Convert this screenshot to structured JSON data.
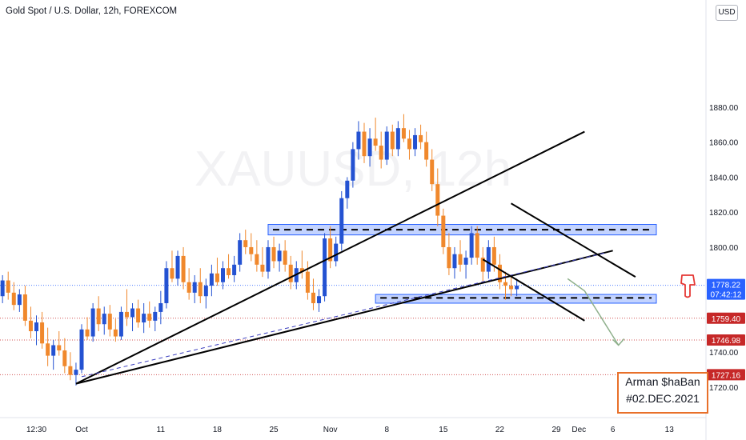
{
  "header": {
    "title": "Gold Spot / U.S. Dollar, 12h, FOREXCOM",
    "currency": "USD",
    "watermark": "XAUUSD, 12h"
  },
  "author_box": {
    "name": "Arman $haBan",
    "date": "#02.DEC.2021",
    "border_color": "#e8702a"
  },
  "price_tags": [
    {
      "value": "1778.22",
      "sub": "07:42:12",
      "color": "#2962ff"
    },
    {
      "value": "1759.40",
      "color": "#c62828"
    },
    {
      "value": "1746.98",
      "color": "#c62828"
    },
    {
      "value": "1727.16",
      "color": "#c62828"
    }
  ],
  "icons": {
    "pointer": "hand-pointing-down-icon"
  },
  "colors": {
    "bull": "#2452d2",
    "bear": "#f0882c",
    "zone": "#2962ff",
    "level": "#e53935"
  },
  "chart_data": {
    "type": "candlestick",
    "title": "Gold Spot / U.S. Dollar, 12h, FOREXCOM",
    "y_ticks": [
      "1720.00",
      "1740.00",
      "1760.00",
      "1780.00",
      "1800.00",
      "1820.00",
      "1840.00",
      "1860.00",
      "1880.00"
    ],
    "ylim": [
      1707,
      1890
    ],
    "x_ticks": [
      {
        "label": "12:30",
        "i": -8
      },
      {
        "label": "Oct",
        "i": 0
      },
      {
        "label": "11",
        "i": 14
      },
      {
        "label": "18",
        "i": 24
      },
      {
        "label": "25",
        "i": 34
      },
      {
        "label": "Nov",
        "i": 44
      },
      {
        "label": "8",
        "i": 54
      },
      {
        "label": "15",
        "i": 64
      },
      {
        "label": "22",
        "i": 74
      },
      {
        "label": "29",
        "i": 84
      },
      {
        "label": "Dec",
        "i": 88
      },
      {
        "label": "6",
        "i": 94
      },
      {
        "label": "13",
        "i": 104
      }
    ],
    "x_range": [
      -14,
      111
    ],
    "candles": [
      [
        -14,
        1772,
        1784,
        1768,
        1781
      ],
      [
        -13,
        1781,
        1786,
        1770,
        1774
      ],
      [
        -12,
        1774,
        1780,
        1764,
        1767
      ],
      [
        -11,
        1767,
        1776,
        1763,
        1773
      ],
      [
        -10,
        1773,
        1778,
        1755,
        1758
      ],
      [
        -9,
        1758,
        1766,
        1748,
        1752
      ],
      [
        -8,
        1752,
        1761,
        1744,
        1757
      ],
      [
        -7,
        1757,
        1763,
        1742,
        1745
      ],
      [
        -6,
        1745,
        1754,
        1732,
        1738
      ],
      [
        -5,
        1738,
        1747,
        1730,
        1744
      ],
      [
        -4,
        1744,
        1752,
        1738,
        1741
      ],
      [
        -3,
        1741,
        1748,
        1728,
        1732
      ],
      [
        -2,
        1732,
        1740,
        1724,
        1727
      ],
      [
        -1,
        1727,
        1734,
        1721,
        1730
      ],
      [
        0,
        1730,
        1756,
        1728,
        1753
      ],
      [
        1,
        1753,
        1760,
        1747,
        1749
      ],
      [
        2,
        1749,
        1768,
        1746,
        1765
      ],
      [
        3,
        1765,
        1772,
        1752,
        1756
      ],
      [
        4,
        1756,
        1766,
        1750,
        1762
      ],
      [
        5,
        1762,
        1767,
        1749,
        1753
      ],
      [
        6,
        1753,
        1759,
        1746,
        1749
      ],
      [
        7,
        1749,
        1766,
        1747,
        1763
      ],
      [
        8,
        1763,
        1776,
        1755,
        1760
      ],
      [
        9,
        1760,
        1768,
        1752,
        1765
      ],
      [
        10,
        1765,
        1770,
        1754,
        1757
      ],
      [
        11,
        1757,
        1768,
        1751,
        1762
      ],
      [
        12,
        1762,
        1769,
        1754,
        1758
      ],
      [
        13,
        1758,
        1766,
        1752,
        1763
      ],
      [
        14,
        1763,
        1775,
        1756,
        1768
      ],
      [
        15,
        1768,
        1792,
        1765,
        1788
      ],
      [
        16,
        1788,
        1798,
        1780,
        1782
      ],
      [
        17,
        1782,
        1798,
        1778,
        1795
      ],
      [
        18,
        1795,
        1800,
        1776,
        1780
      ],
      [
        19,
        1780,
        1788,
        1770,
        1774
      ],
      [
        20,
        1774,
        1784,
        1768,
        1780
      ],
      [
        21,
        1780,
        1788,
        1768,
        1772
      ],
      [
        22,
        1772,
        1782,
        1765,
        1778
      ],
      [
        23,
        1778,
        1790,
        1772,
        1785
      ],
      [
        24,
        1785,
        1794,
        1778,
        1780
      ],
      [
        25,
        1780,
        1792,
        1776,
        1788
      ],
      [
        26,
        1788,
        1796,
        1782,
        1784
      ],
      [
        27,
        1784,
        1795,
        1780,
        1790
      ],
      [
        28,
        1790,
        1808,
        1786,
        1804
      ],
      [
        29,
        1804,
        1810,
        1796,
        1800
      ],
      [
        30,
        1800,
        1808,
        1792,
        1796
      ],
      [
        31,
        1796,
        1804,
        1786,
        1790
      ],
      [
        32,
        1790,
        1800,
        1783,
        1786
      ],
      [
        33,
        1786,
        1804,
        1782,
        1800
      ],
      [
        34,
        1800,
        1806,
        1788,
        1792
      ],
      [
        35,
        1792,
        1802,
        1786,
        1798
      ],
      [
        36,
        1798,
        1804,
        1786,
        1790
      ],
      [
        37,
        1790,
        1795,
        1776,
        1780
      ],
      [
        38,
        1780,
        1792,
        1776,
        1788
      ],
      [
        39,
        1788,
        1798,
        1782,
        1786
      ],
      [
        40,
        1786,
        1792,
        1770,
        1774
      ],
      [
        41,
        1774,
        1782,
        1764,
        1768
      ],
      [
        42,
        1768,
        1776,
        1763,
        1772
      ],
      [
        43,
        1772,
        1808,
        1769,
        1805
      ],
      [
        44,
        1805,
        1812,
        1788,
        1792
      ],
      [
        45,
        1792,
        1806,
        1789,
        1802
      ],
      [
        46,
        1802,
        1832,
        1798,
        1828
      ],
      [
        47,
        1828,
        1840,
        1822,
        1838
      ],
      [
        48,
        1838,
        1860,
        1834,
        1856
      ],
      [
        49,
        1856,
        1872,
        1850,
        1866
      ],
      [
        50,
        1866,
        1871,
        1848,
        1852
      ],
      [
        51,
        1852,
        1868,
        1846,
        1862
      ],
      [
        52,
        1862,
        1874,
        1855,
        1858
      ],
      [
        53,
        1858,
        1866,
        1845,
        1850
      ],
      [
        54,
        1850,
        1869,
        1847,
        1866
      ],
      [
        55,
        1866,
        1870,
        1852,
        1856
      ],
      [
        56,
        1856,
        1872,
        1852,
        1868
      ],
      [
        57,
        1868,
        1876,
        1860,
        1862
      ],
      [
        58,
        1862,
        1867,
        1850,
        1856
      ],
      [
        59,
        1856,
        1868,
        1852,
        1864
      ],
      [
        60,
        1864,
        1870,
        1856,
        1860
      ],
      [
        61,
        1860,
        1866,
        1846,
        1850
      ],
      [
        62,
        1850,
        1856,
        1832,
        1836
      ],
      [
        63,
        1836,
        1845,
        1812,
        1818
      ],
      [
        64,
        1818,
        1822,
        1796,
        1800
      ],
      [
        65,
        1800,
        1808,
        1784,
        1788
      ],
      [
        66,
        1788,
        1800,
        1782,
        1796
      ],
      [
        67,
        1796,
        1804,
        1786,
        1790
      ],
      [
        68,
        1790,
        1798,
        1782,
        1794
      ],
      [
        69,
        1794,
        1812,
        1790,
        1808
      ],
      [
        70,
        1808,
        1812,
        1790,
        1794
      ],
      [
        71,
        1794,
        1800,
        1780,
        1786
      ],
      [
        72,
        1786,
        1804,
        1782,
        1800
      ],
      [
        73,
        1800,
        1806,
        1786,
        1790
      ],
      [
        74,
        1790,
        1796,
        1776,
        1780
      ],
      [
        75,
        1780,
        1786,
        1770,
        1778
      ],
      [
        76,
        1778,
        1784,
        1772,
        1776
      ],
      [
        77,
        1776,
        1782,
        1772,
        1778
      ]
    ],
    "candles_format": "[index, open, high, low, close]",
    "zones": [
      {
        "i_start": 33,
        "i_end": 111,
        "top": 1813,
        "bottom": 1807,
        "mid": 1810
      },
      {
        "i_start": 52,
        "i_end": 111,
        "top": 1773,
        "bottom": 1768,
        "mid": 1771
      }
    ],
    "levels": [
      {
        "value": 1778.22,
        "color": "#2962ff",
        "style": "dotted"
      },
      {
        "value": 1759.4,
        "color": "#c62828",
        "style": "dotted"
      },
      {
        "value": 1746.98,
        "color": "#c62828",
        "style": "dotted"
      },
      {
        "value": 1727.16,
        "color": "#c62828",
        "style": "dotted"
      }
    ],
    "trendlines": [
      {
        "i1": -1,
        "y1": 1722,
        "i2": 89,
        "y2": 1866,
        "color": "#000000",
        "dash": false
      },
      {
        "i1": -1,
        "y1": 1722,
        "i2": 94,
        "y2": 1798,
        "color": "#000000",
        "dash": false
      },
      {
        "i1": 0,
        "y1": 1726,
        "i2": 93,
        "y2": 1797,
        "color": "#3b3fbf",
        "dash": true
      },
      {
        "i1": 76,
        "y1": 1825,
        "i2": 98,
        "y2": 1783,
        "color": "#000000",
        "dash": false
      },
      {
        "i1": 71,
        "y1": 1793,
        "i2": 89,
        "y2": 1758,
        "color": "#000000",
        "dash": false
      }
    ],
    "arrow": {
      "points": [
        [
          86,
          1782
        ],
        [
          89,
          1775
        ],
        [
          95,
          1744
        ]
      ],
      "color": "#8fb08c"
    }
  }
}
